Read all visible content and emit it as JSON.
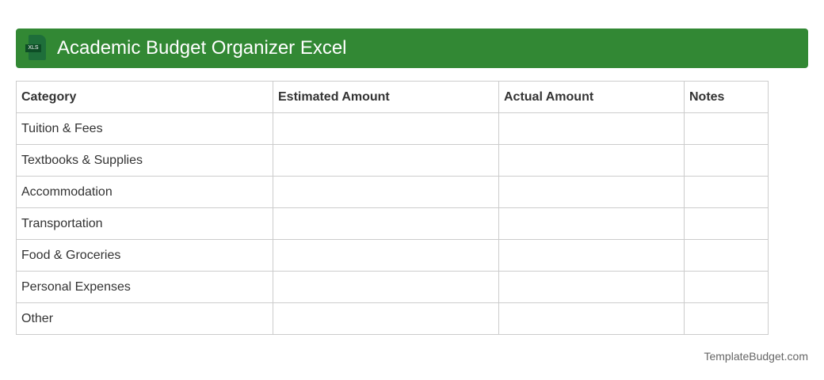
{
  "header": {
    "title": "Academic Budget Organizer Excel",
    "icon": "xls-file-icon",
    "icon_label": "XLS"
  },
  "table": {
    "headers": [
      "Category",
      "Estimated Amount",
      "Actual Amount",
      "Notes"
    ],
    "rows": [
      "Tuition & Fees",
      "Textbooks & Supplies",
      "Accommodation",
      "Transportation",
      "Food & Groceries",
      "Personal Expenses",
      "Other"
    ]
  },
  "footer": "TemplateBudget.com",
  "colors": {
    "header_bg": "#328834"
  }
}
